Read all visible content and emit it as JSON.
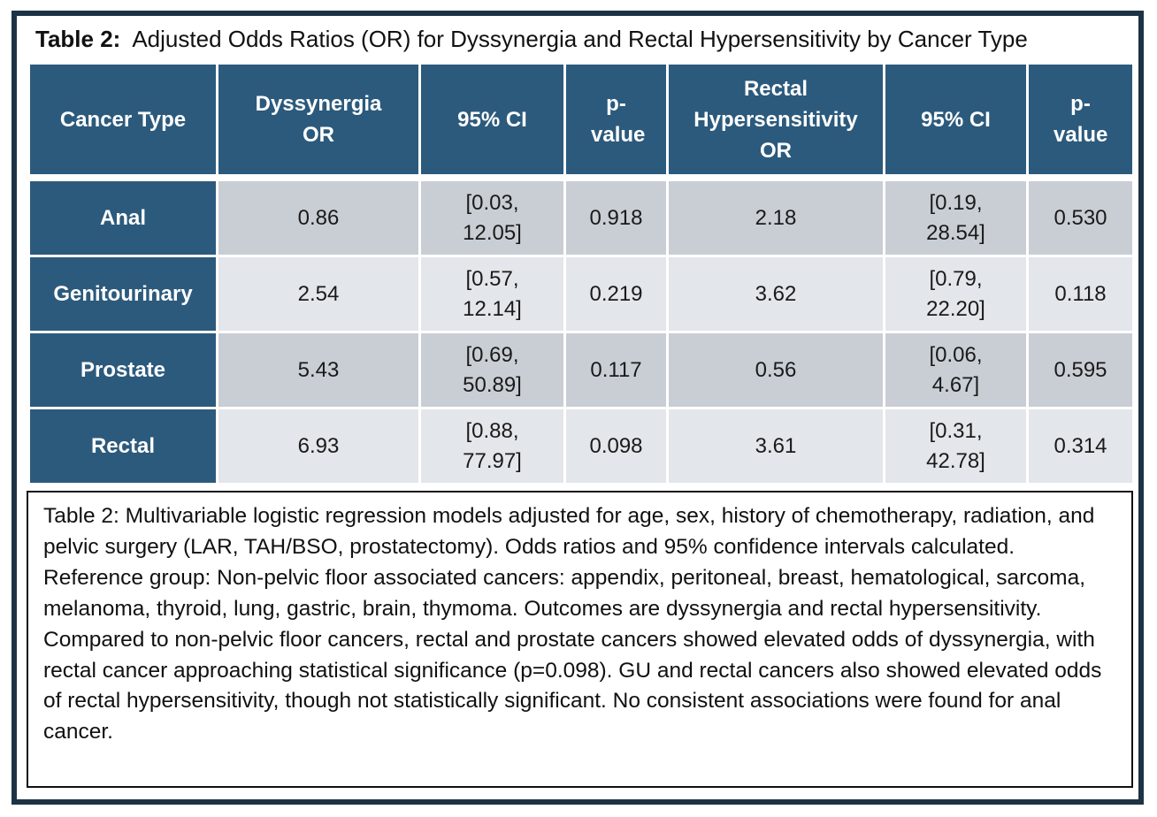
{
  "title": {
    "label": "Table 2:",
    "text": "Adjusted Odds Ratios (OR) for Dyssynergia and Rectal Hypersensitivity by Cancer Type"
  },
  "table": {
    "headers": [
      "Cancer Type",
      "Dyssynergia OR",
      "95% CI",
      "p-value",
      "Rectal Hypersensitivity OR",
      "95% CI",
      "p-value"
    ],
    "rows": [
      {
        "cancer_type": "Anal",
        "dys_or": "0.86",
        "dys_ci": "[0.03, 12.05]",
        "dys_p": "0.918",
        "rh_or": "2.18",
        "rh_ci": "[0.19, 28.54]",
        "rh_p": "0.530"
      },
      {
        "cancer_type": "Genitourinary",
        "dys_or": "2.54",
        "dys_ci": "[0.57, 12.14]",
        "dys_p": "0.219",
        "rh_or": "3.62",
        "rh_ci": "[0.79, 22.20]",
        "rh_p": "0.118"
      },
      {
        "cancer_type": "Prostate",
        "dys_or": "5.43",
        "dys_ci": "[0.69, 50.89]",
        "dys_p": "0.117",
        "rh_or": "0.56",
        "rh_ci": "[0.06, 4.67]",
        "rh_p": "0.595"
      },
      {
        "cancer_type": "Rectal",
        "dys_or": "6.93",
        "dys_ci": "[0.88, 77.97]",
        "dys_p": "0.098",
        "rh_or": "3.61",
        "rh_ci": "[0.31, 42.78]",
        "rh_p": "0.314"
      }
    ]
  },
  "caption": "Table 2: Multivariable logistic regression models adjusted for age, sex, history of chemotherapy, radiation, and pelvic surgery (LAR, TAH/BSO, prostatectomy). Odds ratios and 95% confidence intervals calculated. Reference group: Non-pelvic floor associated cancers: appendix, peritoneal, breast, hematological, sarcoma, melanoma, thyroid, lung, gastric, brain, thymoma. Outcomes are dyssynergia and rectal hypersensitivity. Compared to non-pelvic floor cancers, rectal and prostate cancers showed elevated odds of dyssynergia, with rectal cancer approaching statistical significance (p=0.098). GU and rectal cancers also showed elevated odds of rectal hypersensitivity, though not statistically significant. No consistent associations were found for anal cancer.",
  "colors": {
    "frame": "#1d3345",
    "header_bg": "#2c5a7c",
    "row_dark": "#c9ced5",
    "row_light": "#e3e6ea"
  }
}
